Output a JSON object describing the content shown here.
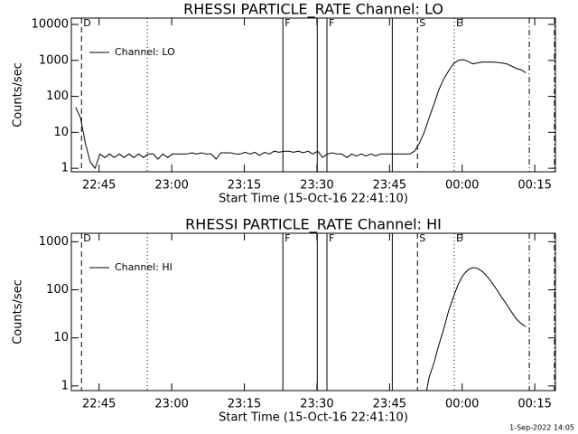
{
  "chart_data": [
    {
      "type": "line",
      "title": "RHESSI PARTICLE_RATE Channel: LO",
      "xlabel": "Start Time (15-Oct-16 22:41:10)",
      "ylabel": "Counts/sec",
      "ylog": true,
      "ylim": [
        0.8,
        15000
      ],
      "yticks": [
        1,
        10,
        100,
        1000,
        10000
      ],
      "xlim": [
        -1.9,
        98.1
      ],
      "xticks": [
        {
          "value": 3.833,
          "label": "22:45"
        },
        {
          "value": 18.833,
          "label": "23:00"
        },
        {
          "value": 33.833,
          "label": "23:15"
        },
        {
          "value": 48.833,
          "label": "23:30"
        },
        {
          "value": 63.833,
          "label": "23:45"
        },
        {
          "value": 78.833,
          "label": "00:00"
        },
        {
          "value": 93.833,
          "label": "00:15"
        }
      ],
      "markers": [
        {
          "x": 0.2,
          "style": "dashed",
          "label": "D"
        },
        {
          "x": 13.8,
          "style": "dotted"
        },
        {
          "x": 41.8,
          "style": "solid",
          "label": "F"
        },
        {
          "x": 48.9,
          "style": "solid"
        },
        {
          "x": 50.9,
          "style": "solid",
          "label": "F"
        },
        {
          "x": 64.4,
          "style": "solid"
        },
        {
          "x": 69.6,
          "style": "dashed",
          "label": "S"
        },
        {
          "x": 77.2,
          "style": "dotted",
          "label": "E"
        },
        {
          "x": 92.7,
          "style": "dashdot"
        },
        {
          "x": 97.9,
          "style": "dashdot"
        }
      ],
      "legend": "upper left",
      "series": [
        {
          "name": "Channel: LO",
          "color": "#000000",
          "x": [
            -1,
            0,
            1,
            2,
            3,
            4,
            5,
            6,
            7,
            8,
            9,
            10,
            11,
            12,
            13,
            14,
            15,
            16,
            17,
            18,
            19,
            20,
            21,
            22,
            23,
            24,
            25,
            26,
            27,
            28,
            29,
            30,
            31,
            32,
            33,
            34,
            35,
            36,
            37,
            38,
            39,
            40,
            41,
            42,
            43,
            44,
            45,
            46,
            47,
            48,
            49,
            50,
            51,
            52,
            53,
            54,
            55,
            56,
            57,
            58,
            59,
            60,
            61,
            62,
            63,
            64,
            65,
            66,
            67,
            68,
            69,
            70,
            71,
            72,
            73,
            74,
            75,
            76,
            77,
            78,
            79,
            80,
            81,
            82,
            83,
            84,
            85,
            86,
            87,
            88,
            89,
            90,
            91,
            92
          ],
          "values": [
            50,
            25,
            5,
            1.5,
            1,
            2.5,
            2,
            2.5,
            2,
            2.5,
            2,
            2.5,
            2,
            2.5,
            2,
            2.5,
            2.5,
            1.8,
            2.5,
            2,
            2.5,
            2.5,
            2.5,
            2.5,
            2.7,
            2.5,
            2.7,
            2.5,
            2.5,
            1.8,
            2.7,
            2.7,
            2.7,
            2.5,
            2.5,
            2.8,
            2.5,
            2.8,
            2.3,
            2.8,
            2.5,
            3,
            2.8,
            3,
            3,
            2.8,
            3,
            2.7,
            3,
            2.5,
            3,
            2,
            2.5,
            2.7,
            2.5,
            2.5,
            2,
            2.5,
            2.2,
            2.5,
            2.2,
            2.5,
            2.2,
            2.5,
            2.5,
            2.5,
            2.5,
            2.5,
            2.5,
            2.5,
            3,
            5,
            10,
            25,
            60,
            150,
            300,
            500,
            800,
            1000,
            1050,
            950,
            800,
            850,
            900,
            900,
            900,
            880,
            850,
            800,
            700,
            600,
            550,
            450
          ]
        }
      ]
    },
    {
      "type": "line",
      "title": "RHESSI PARTICLE_RATE Channel: HI",
      "xlabel": "Start Time (15-Oct-16 22:41:10)",
      "ylabel": "Counts/sec",
      "ylog": true,
      "ylim": [
        0.8,
        1500
      ],
      "yticks": [
        1,
        10,
        100,
        1000
      ],
      "xlim": [
        -1.9,
        98.1
      ],
      "xticks": [
        {
          "value": 3.833,
          "label": "22:45"
        },
        {
          "value": 18.833,
          "label": "23:00"
        },
        {
          "value": 33.833,
          "label": "23:15"
        },
        {
          "value": 48.833,
          "label": "23:30"
        },
        {
          "value": 63.833,
          "label": "23:45"
        },
        {
          "value": 78.833,
          "label": "00:00"
        },
        {
          "value": 93.833,
          "label": "00:15"
        }
      ],
      "markers": [
        {
          "x": 0.2,
          "style": "dashed",
          "label": "D"
        },
        {
          "x": 13.8,
          "style": "dotted"
        },
        {
          "x": 41.8,
          "style": "solid",
          "label": "F"
        },
        {
          "x": 48.9,
          "style": "solid"
        },
        {
          "x": 50.9,
          "style": "solid",
          "label": "F"
        },
        {
          "x": 64.4,
          "style": "solid"
        },
        {
          "x": 69.6,
          "style": "dashed",
          "label": "S"
        },
        {
          "x": 77.2,
          "style": "dotted",
          "label": "E"
        },
        {
          "x": 92.7,
          "style": "dashdot"
        },
        {
          "x": 97.9,
          "style": "dashdot"
        }
      ],
      "legend": "upper left",
      "series": [
        {
          "name": "Channel: HI",
          "color": "#000000",
          "x": [
            71.5,
            72,
            73,
            74,
            75,
            76,
            77,
            78,
            79,
            80,
            81,
            82,
            83,
            84,
            85,
            86,
            87,
            88,
            89,
            90,
            91,
            92
          ],
          "values": [
            0.8,
            1.5,
            3,
            7,
            15,
            35,
            70,
            130,
            200,
            260,
            290,
            280,
            240,
            190,
            140,
            100,
            70,
            50,
            35,
            25,
            20,
            17
          ]
        }
      ]
    }
  ],
  "footer": "1-Sep-2022 14:05"
}
